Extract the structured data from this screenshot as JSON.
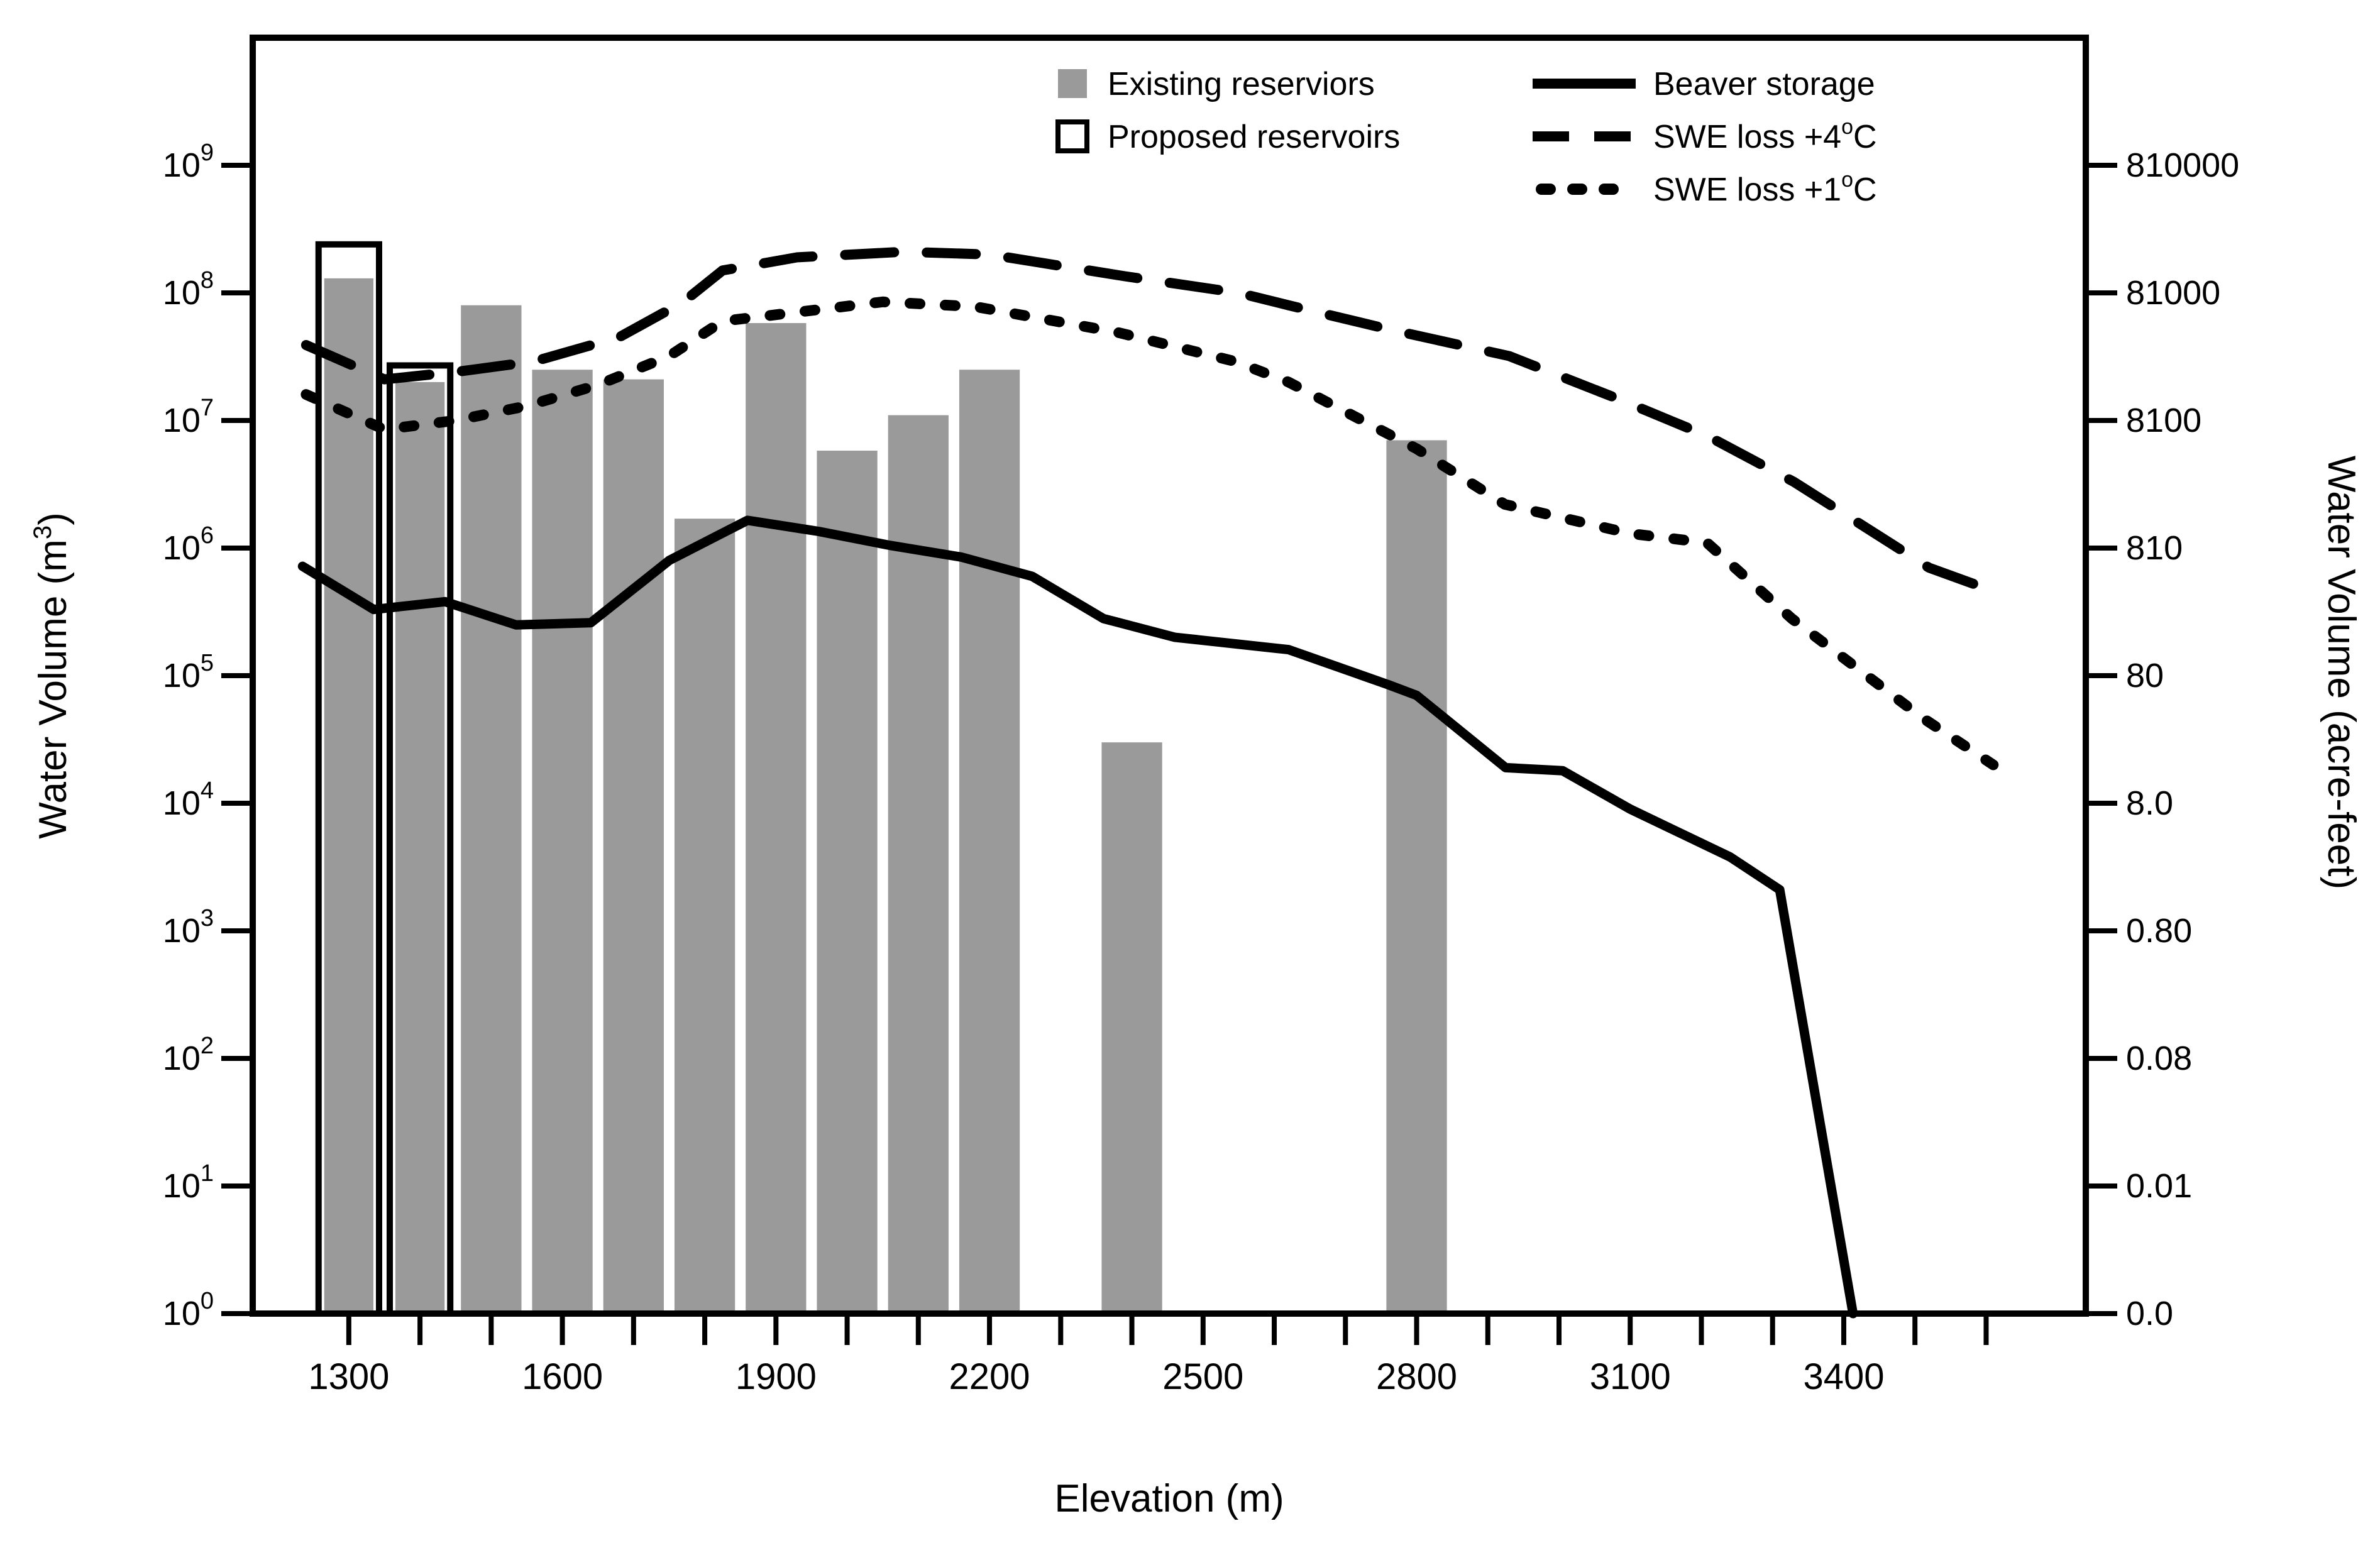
{
  "colors": {
    "background": "#ffffff",
    "bar_gray": "#9a9a9a",
    "line_black": "#000000"
  },
  "legend": {
    "existing_label": "Existing reserviors",
    "proposed_label": "Proposed reservoirs",
    "beaver_label": "Beaver storage",
    "swe4_prefix": "SWE loss +4",
    "swe4_sup": "o",
    "swe4_suffix": "C",
    "swe1_prefix": "SWE loss +1",
    "swe1_sup": "o",
    "swe1_suffix": "C"
  },
  "chart_data": {
    "type": "bar",
    "subtype": "log-bar-and-line-composite",
    "title": "",
    "x_axis": {
      "label": "Elevation (m)",
      "domain": [
        1165,
        3740
      ],
      "major_ticks": [
        1300,
        1600,
        1900,
        2200,
        2500,
        2800,
        3100,
        3400
      ],
      "minor_tick_step": 100,
      "minor_tick_range": [
        1300,
        3600
      ]
    },
    "y_axis_left": {
      "label_prefix": "Water Volume (m",
      "label_sup": "3",
      "label_suffix": ")",
      "scale": "log",
      "tick_exponents": [
        0,
        1,
        2,
        3,
        4,
        5,
        6,
        7,
        8,
        9
      ],
      "domain_exponents": [
        0,
        10
      ]
    },
    "y_axis_right": {
      "label": "Water Volume (acre-feet)",
      "tick_labels_top_to_bottom": [
        "810000",
        "81000",
        "8100",
        "810",
        "80",
        "8.0",
        "0.80",
        "0.08",
        "0.01",
        "0.0"
      ]
    },
    "bar_width_m": 100,
    "bars_existing": [
      {
        "elevation_m": 1300,
        "volume_m3": 130000000
      },
      {
        "elevation_m": 1400,
        "volume_m3": 20000000
      },
      {
        "elevation_m": 1500,
        "volume_m3": 80000000
      },
      {
        "elevation_m": 1600,
        "volume_m3": 25000000
      },
      {
        "elevation_m": 1700,
        "volume_m3": 21000000
      },
      {
        "elevation_m": 1800,
        "volume_m3": 1700000
      },
      {
        "elevation_m": 1900,
        "volume_m3": 58000000
      },
      {
        "elevation_m": 2000,
        "volume_m3": 5800000
      },
      {
        "elevation_m": 2100,
        "volume_m3": 11000000
      },
      {
        "elevation_m": 2200,
        "volume_m3": 25000000
      },
      {
        "elevation_m": 2400,
        "volume_m3": 30000
      },
      {
        "elevation_m": 2800,
        "volume_m3": 7000000
      }
    ],
    "bars_proposed": [
      {
        "elevation_m": 1300,
        "volume_m3": 240000000
      },
      {
        "elevation_m": 1400,
        "volume_m3": 27000000
      }
    ],
    "series": [
      {
        "key": "beaver-storage",
        "name": "Beaver storage",
        "style": "solid",
        "points_elev_m3": [
          [
            1235,
            720000
          ],
          [
            1335,
            330000
          ],
          [
            1435,
            380000
          ],
          [
            1535,
            250000
          ],
          [
            1640,
            260000
          ],
          [
            1750,
            800000
          ],
          [
            1860,
            1650000
          ],
          [
            1960,
            1350000
          ],
          [
            2060,
            1050000
          ],
          [
            2160,
            850000
          ],
          [
            2260,
            600000
          ],
          [
            2360,
            280000
          ],
          [
            2460,
            200000
          ],
          [
            2620,
            160000
          ],
          [
            2760,
            85000
          ],
          [
            2800,
            70000
          ],
          [
            2925,
            19000
          ],
          [
            3005,
            18000
          ],
          [
            3100,
            9000
          ],
          [
            3240,
            3800
          ],
          [
            3310,
            2100
          ],
          [
            3413,
            1
          ]
        ]
      },
      {
        "key": "swe-loss-plus4c",
        "name": "SWE loss +4C",
        "style": "dashed",
        "points_elev_m3": [
          [
            1240,
            39000000
          ],
          [
            1350,
            21000000
          ],
          [
            1450,
            24000000
          ],
          [
            1560,
            29000000
          ],
          [
            1680,
            45000000
          ],
          [
            1770,
            85000000
          ],
          [
            1825,
            150000000
          ],
          [
            1930,
            190000000
          ],
          [
            2080,
            210000000
          ],
          [
            2200,
            200000000
          ],
          [
            2390,
            135000000
          ],
          [
            2550,
            100000000
          ],
          [
            2620,
            80000000
          ],
          [
            2760,
            52000000
          ],
          [
            2930,
            32000000
          ],
          [
            3080,
            15000000
          ],
          [
            3210,
            7500000
          ],
          [
            3330,
            3300000
          ],
          [
            3520,
            700000
          ],
          [
            3620,
            440000
          ]
        ]
      },
      {
        "key": "swe-loss-plus1c",
        "name": "SWE loss +1C",
        "style": "dotted",
        "points_elev_m3": [
          [
            1240,
            16000000
          ],
          [
            1350,
            8500000
          ],
          [
            1450,
            10000000
          ],
          [
            1550,
            13000000
          ],
          [
            1650,
            19000000
          ],
          [
            1750,
            32000000
          ],
          [
            1825,
            60000000
          ],
          [
            2050,
            85000000
          ],
          [
            2180,
            78000000
          ],
          [
            2380,
            49000000
          ],
          [
            2545,
            29000000
          ],
          [
            2620,
            20000000
          ],
          [
            2800,
            6000000
          ],
          [
            2924,
            2200000
          ],
          [
            3100,
            1300000
          ],
          [
            3208,
            1100000
          ],
          [
            3327,
            280000
          ],
          [
            3510,
            47000
          ],
          [
            3610,
            20000
          ]
        ]
      }
    ]
  }
}
